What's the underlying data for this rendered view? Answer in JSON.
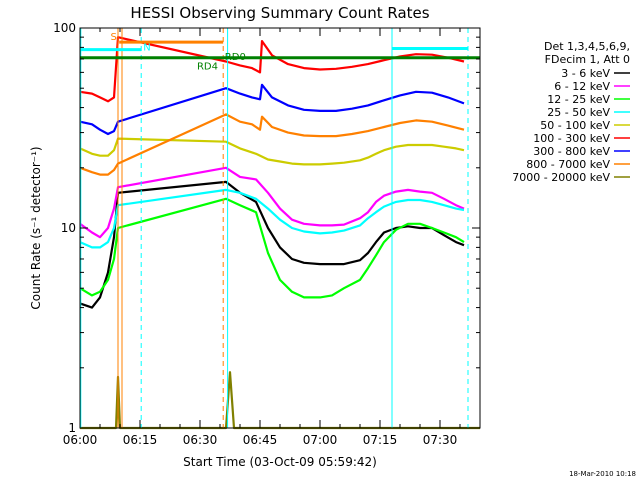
{
  "chart_data": {
    "type": "line",
    "title": "HESSI Observing Summary Count Rates",
    "xlabel": "Start Time (03-Oct-09 05:59:42)",
    "ylabel": "Count Rate (s⁻¹ detector⁻¹)",
    "x_unit": "minutes after 06:00",
    "xlim": [
      0,
      100
    ],
    "ylim": [
      1,
      100
    ],
    "yscale": "log",
    "x_ticks": [
      {
        "v": 0,
        "label": "06:00"
      },
      {
        "v": 15,
        "label": "06:15"
      },
      {
        "v": 30,
        "label": "06:30"
      },
      {
        "v": 45,
        "label": "06:45"
      },
      {
        "v": 60,
        "label": "07:00"
      },
      {
        "v": 75,
        "label": "07:15"
      },
      {
        "v": 90,
        "label": "07:30"
      }
    ],
    "y_ticks": [
      {
        "v": 1,
        "label": "1"
      },
      {
        "v": 10,
        "label": "10"
      },
      {
        "v": 100,
        "label": "100"
      }
    ],
    "legend_header": [
      "Det 1,3,4,5,6,9,",
      "FDecim 1, Att 0"
    ],
    "legend_placement": "right",
    "series": [
      {
        "name": "3 - 6 keV",
        "color": "#000000",
        "points": [
          [
            0,
            4.2
          ],
          [
            3,
            4.0
          ],
          [
            5,
            4.5
          ],
          [
            7,
            6.0
          ],
          [
            8.5,
            9.0
          ],
          [
            9.5,
            15.0
          ],
          [
            36.5,
            17.0
          ],
          [
            40,
            15.0
          ],
          [
            44,
            13.5
          ],
          [
            47,
            10.0
          ],
          [
            50,
            8.0
          ],
          [
            53,
            7.0
          ],
          [
            56,
            6.7
          ],
          [
            60,
            6.6
          ],
          [
            63,
            6.6
          ],
          [
            66,
            6.6
          ],
          [
            70,
            6.9
          ],
          [
            72,
            7.5
          ],
          [
            74,
            8.5
          ],
          [
            76,
            9.5
          ],
          [
            79,
            10.0
          ],
          [
            82,
            10.2
          ],
          [
            85,
            10.0
          ],
          [
            88,
            10.0
          ],
          [
            91,
            9.2
          ],
          [
            94,
            8.5
          ],
          [
            96,
            8.2
          ]
        ]
      },
      {
        "name": "6 - 12 keV",
        "color": "#ff00ff",
        "points": [
          [
            0,
            10.5
          ],
          [
            3,
            9.5
          ],
          [
            5,
            9.0
          ],
          [
            7,
            10.0
          ],
          [
            8.5,
            12.5
          ],
          [
            9.5,
            16.0
          ],
          [
            36.5,
            20.0
          ],
          [
            40,
            18.0
          ],
          [
            44,
            17.5
          ],
          [
            47,
            15.0
          ],
          [
            50,
            12.5
          ],
          [
            53,
            11.0
          ],
          [
            56,
            10.5
          ],
          [
            60,
            10.3
          ],
          [
            63,
            10.3
          ],
          [
            66,
            10.4
          ],
          [
            70,
            11.2
          ],
          [
            72,
            12.0
          ],
          [
            74,
            13.5
          ],
          [
            76,
            14.5
          ],
          [
            79,
            15.2
          ],
          [
            82,
            15.5
          ],
          [
            85,
            15.2
          ],
          [
            88,
            15.0
          ],
          [
            91,
            14.0
          ],
          [
            94,
            13.0
          ],
          [
            96,
            12.5
          ]
        ]
      },
      {
        "name": "12 - 25 keV",
        "color": "#00ff00",
        "points": [
          [
            0,
            5.0
          ],
          [
            3,
            4.6
          ],
          [
            5,
            4.8
          ],
          [
            7,
            5.5
          ],
          [
            8.5,
            7.0
          ],
          [
            9.5,
            10.0
          ],
          [
            36.5,
            14.0
          ],
          [
            40,
            13.0
          ],
          [
            44,
            12.0
          ],
          [
            47,
            7.5
          ],
          [
            50,
            5.5
          ],
          [
            53,
            4.8
          ],
          [
            56,
            4.5
          ],
          [
            60,
            4.5
          ],
          [
            63,
            4.6
          ],
          [
            66,
            5.0
          ],
          [
            70,
            5.5
          ],
          [
            72,
            6.3
          ],
          [
            74,
            7.3
          ],
          [
            76,
            8.5
          ],
          [
            79,
            9.8
          ],
          [
            82,
            10.5
          ],
          [
            85,
            10.5
          ],
          [
            88,
            10.0
          ],
          [
            91,
            9.5
          ],
          [
            94,
            9.0
          ],
          [
            96,
            8.5
          ]
        ]
      },
      {
        "name": "25 - 50 keV",
        "color": "#00ffff",
        "points": [
          [
            0,
            8.5
          ],
          [
            3,
            8.0
          ],
          [
            5,
            8.0
          ],
          [
            7,
            8.5
          ],
          [
            8.5,
            10.0
          ],
          [
            9.5,
            13.0
          ],
          [
            36.5,
            15.5
          ],
          [
            40,
            15.0
          ],
          [
            44,
            14.0
          ],
          [
            47,
            12.5
          ],
          [
            50,
            11.0
          ],
          [
            53,
            10.0
          ],
          [
            56,
            9.6
          ],
          [
            60,
            9.4
          ],
          [
            63,
            9.5
          ],
          [
            66,
            9.7
          ],
          [
            70,
            10.3
          ],
          [
            72,
            11.2
          ],
          [
            74,
            12.0
          ],
          [
            76,
            12.8
          ],
          [
            79,
            13.5
          ],
          [
            82,
            13.8
          ],
          [
            85,
            13.8
          ],
          [
            88,
            13.5
          ],
          [
            91,
            13.0
          ],
          [
            94,
            12.5
          ],
          [
            96,
            12.3
          ]
        ]
      },
      {
        "name": "50 - 100 keV",
        "color": "#cccc00",
        "points": [
          [
            0,
            25.0
          ],
          [
            3,
            23.5
          ],
          [
            5,
            23.0
          ],
          [
            7,
            23.0
          ],
          [
            8.5,
            24.5
          ],
          [
            9.5,
            28.0
          ],
          [
            36.5,
            27.0
          ],
          [
            40,
            25.0
          ],
          [
            44,
            23.5
          ],
          [
            47,
            22.0
          ],
          [
            50,
            21.5
          ],
          [
            53,
            21.0
          ],
          [
            56,
            20.8
          ],
          [
            60,
            20.8
          ],
          [
            63,
            21.0
          ],
          [
            66,
            21.2
          ],
          [
            70,
            21.8
          ],
          [
            72,
            22.5
          ],
          [
            74,
            23.5
          ],
          [
            76,
            24.5
          ],
          [
            79,
            25.5
          ],
          [
            82,
            26.0
          ],
          [
            85,
            26.0
          ],
          [
            88,
            26.0
          ],
          [
            91,
            25.5
          ],
          [
            94,
            25.0
          ],
          [
            96,
            24.5
          ]
        ]
      },
      {
        "name": "100 - 300 keV",
        "color": "#ff0000",
        "points": [
          [
            0,
            48.0
          ],
          [
            3,
            47.0
          ],
          [
            5,
            45.0
          ],
          [
            7,
            43.0
          ],
          [
            8.5,
            45.0
          ],
          [
            9.5,
            90.0
          ],
          [
            36.5,
            68.0
          ],
          [
            40,
            65.0
          ],
          [
            43,
            63.0
          ],
          [
            45,
            60.0
          ],
          [
            45.5,
            86.0
          ],
          [
            48,
            73.0
          ],
          [
            52,
            66.0
          ],
          [
            56,
            63.0
          ],
          [
            60,
            62.0
          ],
          [
            64,
            62.5
          ],
          [
            68,
            64.0
          ],
          [
            72,
            66.0
          ],
          [
            76,
            69.0
          ],
          [
            80,
            72.0
          ],
          [
            84,
            74.0
          ],
          [
            88,
            73.5
          ],
          [
            92,
            71.0
          ],
          [
            96,
            68.0
          ]
        ]
      },
      {
        "name": "300 - 800 keV",
        "color": "#0000ff",
        "points": [
          [
            0,
            34.0
          ],
          [
            3,
            33.0
          ],
          [
            5,
            31.0
          ],
          [
            7,
            29.5
          ],
          [
            8.5,
            30.5
          ],
          [
            9.5,
            34.0
          ],
          [
            36.5,
            50.0
          ],
          [
            40,
            47.0
          ],
          [
            43,
            45.0
          ],
          [
            45,
            44.0
          ],
          [
            45.5,
            52.0
          ],
          [
            48,
            45.0
          ],
          [
            52,
            41.0
          ],
          [
            56,
            39.0
          ],
          [
            60,
            38.5
          ],
          [
            64,
            38.5
          ],
          [
            68,
            39.5
          ],
          [
            72,
            41.0
          ],
          [
            76,
            43.5
          ],
          [
            80,
            46.0
          ],
          [
            84,
            48.0
          ],
          [
            88,
            47.5
          ],
          [
            92,
            45.0
          ],
          [
            96,
            42.0
          ]
        ]
      },
      {
        "name": "800 - 7000 keV",
        "color": "#ff8000",
        "points": [
          [
            0,
            20.0
          ],
          [
            3,
            19.0
          ],
          [
            5,
            18.5
          ],
          [
            7,
            18.5
          ],
          [
            8.5,
            19.5
          ],
          [
            9.5,
            21.0
          ],
          [
            36.5,
            37.0
          ],
          [
            40,
            34.0
          ],
          [
            43,
            33.0
          ],
          [
            45,
            31.0
          ],
          [
            45.5,
            36.0
          ],
          [
            48,
            32.0
          ],
          [
            52,
            30.0
          ],
          [
            56,
            29.0
          ],
          [
            60,
            28.8
          ],
          [
            64,
            28.8
          ],
          [
            68,
            29.5
          ],
          [
            72,
            30.5
          ],
          [
            76,
            32.0
          ],
          [
            80,
            33.5
          ],
          [
            84,
            34.5
          ],
          [
            88,
            34.0
          ],
          [
            92,
            32.5
          ],
          [
            96,
            31.0
          ]
        ]
      },
      {
        "name": "7000 - 20000 keV",
        "color": "#808000",
        "points": [
          [
            0,
            1.0
          ],
          [
            9.0,
            1.0
          ],
          [
            9.5,
            1.8
          ],
          [
            10.0,
            1.0
          ],
          [
            36.5,
            1.0
          ],
          [
            37.5,
            1.9
          ],
          [
            38.5,
            1.0
          ],
          [
            100,
            1.0
          ]
        ]
      }
    ],
    "annotations": [
      {
        "label": "S",
        "color": "#ff8000",
        "x": 9.2,
        "y": 87,
        "anchor": "end"
      },
      {
        "label": "N",
        "color": "#00ffff",
        "x": 15.8,
        "y": 77,
        "anchor": "start"
      },
      {
        "label": "RD4",
        "color": "#008000",
        "x": 34.5,
        "y": 62,
        "anchor": "end"
      },
      {
        "label": "RD0",
        "color": "#008000",
        "x": 36.2,
        "y": 69,
        "anchor": "start"
      }
    ],
    "segments": [
      {
        "color": "#00ffff",
        "x0": 0,
        "x1": 15.3,
        "y": 78,
        "dash": false
      },
      {
        "color": "#ff8000",
        "x0": 9.8,
        "x1": 35.8,
        "y": 85,
        "dash": false
      },
      {
        "color": "#008000",
        "x0": 0,
        "x1": 100,
        "y": 71,
        "dash": false
      },
      {
        "color": "#00ffff",
        "x0": 78.0,
        "x1": 97.0,
        "y": 79,
        "dash": false
      }
    ],
    "vlines": [
      {
        "x": 0.2,
        "color": "#00ffff",
        "dash": false
      },
      {
        "x": 9.5,
        "color": "#ff8000",
        "dash": false
      },
      {
        "x": 10.5,
        "color": "#ff8000",
        "dash": false
      },
      {
        "x": 15.3,
        "color": "#00ffff",
        "dash": true
      },
      {
        "x": 35.8,
        "color": "#ff8000",
        "dash": true
      },
      {
        "x": 36.9,
        "color": "#00ffff",
        "dash": false
      },
      {
        "x": 78.0,
        "color": "#00ffff",
        "dash": false
      },
      {
        "x": 97.0,
        "color": "#00ffff",
        "dash": true
      }
    ],
    "grid": false
  },
  "timestamp": "18-Mar-2010 10:18"
}
